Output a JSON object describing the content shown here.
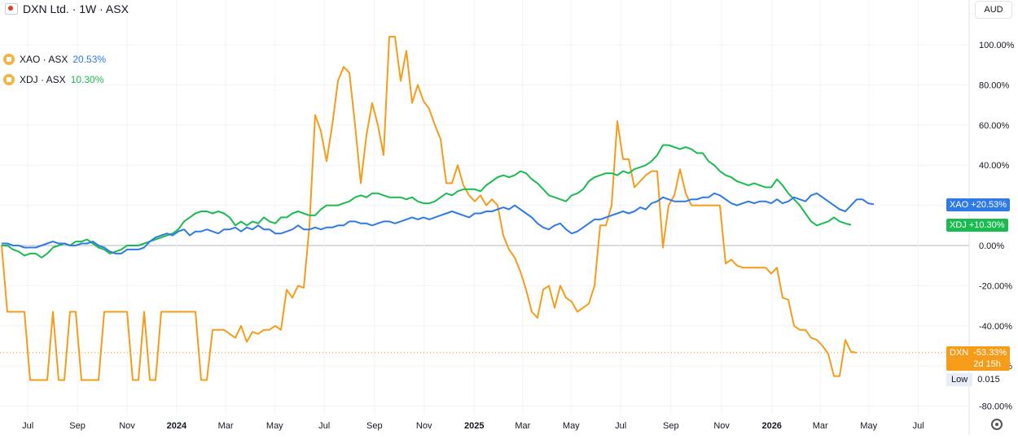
{
  "header": {
    "title": "DXN Ltd. · 1W · ASX"
  },
  "currency": "AUD",
  "legend": [
    {
      "symbol": "XAO · ASX",
      "value": "20.53%",
      "color": "#2f7ae5"
    },
    {
      "symbol": "XDJ · ASX",
      "value": "10.30%",
      "color": "#1bbc4f"
    }
  ],
  "tags": {
    "xao": {
      "label": "XAO",
      "value": "+20.53%",
      "color": "#2f7ae5"
    },
    "xdj": {
      "label": "XDJ",
      "value": "+10.30%",
      "color": "#1bbc4f"
    },
    "dxn": {
      "label": "DXN",
      "value": "-53.33%",
      "countdown": "2d 15h",
      "color": "#f59c1a"
    },
    "low": {
      "label": "Low",
      "value": "0.015"
    }
  },
  "chart_data": {
    "type": "line",
    "ylim": [
      -80,
      110
    ],
    "y_ticks": [
      "100.00%",
      "80.00%",
      "60.00%",
      "40.00%",
      "20.00%",
      "0.00%",
      "-20.00%",
      "-40.00%",
      "-60.00%",
      "-80.00%"
    ],
    "y_tick_values": [
      100,
      80,
      60,
      40,
      20,
      0,
      -20,
      -40,
      -60,
      -80
    ],
    "x_ticks": [
      {
        "label": "Jul",
        "t": 4.6
      },
      {
        "label": "Sep",
        "t": 13.3
      },
      {
        "label": "Nov",
        "t": 22.0
      },
      {
        "label": "2024",
        "t": 30.7
      },
      {
        "label": "Mar",
        "t": 39.3
      },
      {
        "label": "May",
        "t": 47.9
      },
      {
        "label": "Jul",
        "t": 56.6
      },
      {
        "label": "Sep",
        "t": 65.4
      },
      {
        "label": "Nov",
        "t": 74.1
      },
      {
        "label": "2025",
        "t": 82.9
      },
      {
        "label": "Mar",
        "t": 91.4
      },
      {
        "label": "May",
        "t": 99.9
      },
      {
        "label": "Jul",
        "t": 108.6
      },
      {
        "label": "Sep",
        "t": 117.4
      },
      {
        "label": "Nov",
        "t": 126.3
      },
      {
        "label": "2026",
        "t": 135.1
      },
      {
        "label": "Mar",
        "t": 143.6
      },
      {
        "label": "May",
        "t": 152.1
      },
      {
        "label": "Jul",
        "t": 160.8
      }
    ],
    "series": [
      {
        "name": "DXN",
        "color": "#f59c1a",
        "values": [
          0,
          -33,
          -33,
          -33,
          -33,
          -67,
          -67,
          -67,
          -67,
          -33,
          -67,
          -67,
          -33,
          -33,
          -67,
          -67,
          -67,
          -67,
          -33,
          -33,
          -33,
          -33,
          -33,
          -67,
          -67,
          -33,
          -67,
          -67,
          -33,
          -33,
          -33,
          -33,
          -33,
          -33,
          -33,
          -67,
          -67,
          -42,
          -42,
          -42,
          -44,
          -46,
          -40,
          -48,
          -43,
          -44,
          -42,
          -42,
          -40,
          -42,
          -22,
          -26,
          -20,
          -21,
          10,
          65,
          57,
          42,
          60,
          82,
          89,
          86,
          60,
          31,
          55,
          71,
          60,
          45,
          104,
          104,
          82,
          97,
          71,
          80,
          72,
          68,
          60,
          53,
          31,
          31,
          40,
          30,
          25,
          22,
          25,
          20,
          23,
          20,
          5,
          -2,
          -6,
          -13,
          -22,
          -33,
          -36,
          -22,
          -20,
          -31,
          -20,
          -26,
          -28,
          -33,
          -31,
          -29,
          -20,
          10,
          10,
          20,
          62,
          43,
          43,
          29,
          32,
          35,
          37,
          37,
          -1,
          20,
          25,
          38,
          26,
          20,
          20,
          20,
          20,
          20,
          20,
          -9,
          -7,
          -10,
          -11,
          -11,
          -11,
          -11,
          -11,
          -14,
          -11,
          -26,
          -27,
          -40,
          -42,
          -42,
          -46,
          -47,
          -50,
          -54,
          -65,
          -65,
          -47,
          -53,
          -53.33
        ]
      },
      {
        "name": "XAO",
        "color": "#2f7ae5",
        "values": [
          1,
          1,
          0,
          0,
          -1,
          -1,
          -1,
          0,
          1,
          2,
          1,
          1,
          0,
          0,
          1,
          1,
          2,
          0,
          -1,
          -3,
          -4,
          -4,
          -2,
          -2,
          -2,
          -1,
          2,
          4,
          5,
          6,
          5,
          7,
          8,
          5,
          7,
          7,
          8,
          7,
          6,
          8,
          8,
          9,
          7,
          9,
          8,
          10,
          8,
          8,
          6,
          6,
          7,
          8,
          10,
          8,
          8,
          9,
          8,
          9,
          9,
          10,
          10,
          12,
          12,
          11,
          11,
          10,
          11,
          12,
          12,
          11,
          12,
          13,
          14,
          13,
          14,
          13,
          14,
          15,
          16,
          17,
          16,
          15,
          14,
          16,
          16,
          17,
          17,
          18,
          19,
          18,
          20,
          18,
          16,
          14,
          11,
          9,
          8,
          10,
          11,
          8,
          6,
          7,
          9,
          11,
          13,
          13,
          14,
          15,
          16,
          17,
          16,
          17,
          19,
          18,
          21,
          22,
          24,
          23,
          22,
          22,
          22,
          23,
          23,
          24,
          24,
          26,
          25,
          23,
          21,
          20,
          21,
          22,
          21,
          22,
          22,
          21,
          23,
          21,
          22,
          24,
          23,
          22,
          25,
          26,
          24,
          22,
          20,
          18,
          17,
          20,
          23,
          23,
          21,
          20.53
        ]
      },
      {
        "name": "XDJ",
        "color": "#1bbc4f",
        "values": [
          0,
          0,
          -2,
          -3,
          -5,
          -4,
          -4,
          -6,
          -4,
          -1,
          0,
          1,
          0,
          2,
          2,
          3,
          1,
          -1,
          -2,
          -4,
          -3,
          -2,
          0,
          0,
          0,
          1,
          2,
          3,
          4,
          5,
          6,
          8,
          12,
          14,
          16,
          17,
          17,
          16,
          17,
          16,
          14,
          10,
          12,
          10,
          12,
          11,
          14,
          12,
          11,
          14,
          14,
          16,
          17,
          16,
          15,
          15,
          18,
          20,
          20,
          20,
          21,
          22,
          24,
          25,
          24,
          26,
          26,
          25,
          24,
          24,
          24,
          23,
          24,
          22,
          21,
          21,
          22,
          24,
          26,
          25,
          27,
          28,
          28,
          28,
          27,
          30,
          32,
          34,
          35,
          34,
          35,
          37,
          36,
          33,
          31,
          28,
          25,
          24,
          23,
          22,
          25,
          26,
          28,
          32,
          34,
          35,
          36,
          36,
          35,
          37,
          36,
          38,
          39,
          40,
          42,
          45,
          50,
          50,
          49,
          48,
          49,
          48,
          46,
          46,
          42,
          40,
          37,
          35,
          34,
          32,
          31,
          30,
          31,
          30,
          29,
          29,
          33,
          30,
          26,
          23,
          20,
          16,
          12,
          10,
          11,
          12,
          14,
          12,
          11,
          10.3
        ]
      }
    ]
  }
}
